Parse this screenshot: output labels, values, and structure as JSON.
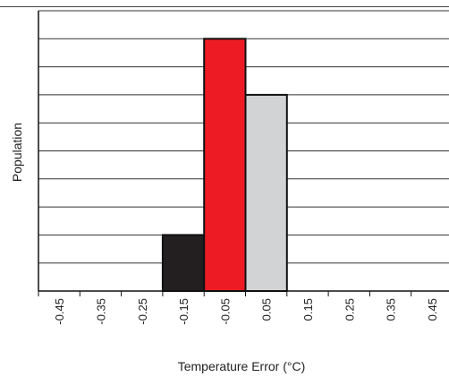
{
  "chart_data": {
    "type": "bar",
    "title": "",
    "xlabel": "Temperature Error (°C)",
    "ylabel": "Population",
    "categories": [
      "-0.45",
      "-0.35",
      "-0.25",
      "-0.15",
      "-0.05",
      "0.05",
      "0.15",
      "0.25",
      "0.35",
      "0.45"
    ],
    "values": [
      0,
      0,
      0,
      2,
      9,
      7,
      0,
      0,
      0,
      0
    ],
    "bar_colors": [
      "#ffffff",
      "#ffffff",
      "#ffffff",
      "#231f20",
      "#ed1c24",
      "#d1d3d4",
      "#ffffff",
      "#ffffff",
      "#ffffff",
      "#ffffff"
    ],
    "ylim": [
      0,
      10
    ],
    "grid": true,
    "y_tick_labels_shown": false,
    "legend": "none"
  }
}
